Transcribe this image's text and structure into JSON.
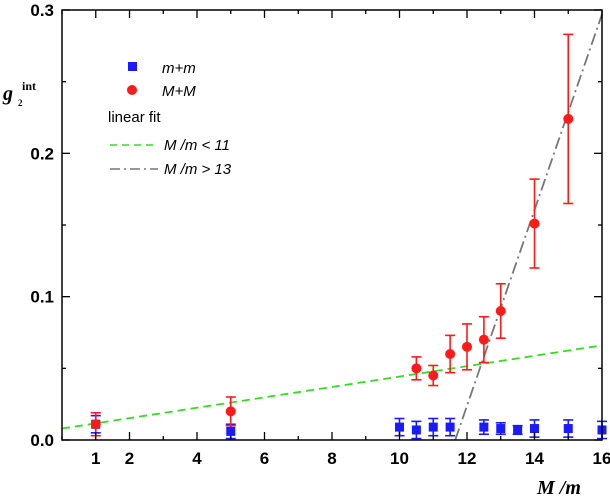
{
  "chart_data": {
    "type": "scatter",
    "ylabel": {
      "main": "g",
      "sup": "int",
      "sub": "2"
    },
    "xlabel": "M /m",
    "xlim": [
      0,
      16
    ],
    "ylim": [
      0,
      0.3
    ],
    "x_ticks": [
      1,
      2,
      4,
      6,
      8,
      10,
      12,
      14,
      16
    ],
    "y_ticks": [
      0.0,
      0.1,
      0.2,
      0.3
    ],
    "y_tick_labels": [
      "0.0",
      "0.1",
      "0.2",
      "0.3"
    ],
    "legend": {
      "placement": "top-left",
      "fit_title": "linear fit"
    },
    "series": [
      {
        "name": "m+m",
        "marker": "square",
        "color": "#1a1aff",
        "points": [
          {
            "x": 1,
            "y": 0.011,
            "err": 0.006
          },
          {
            "x": 5,
            "y": 0.006,
            "err": 0.005
          },
          {
            "x": 10,
            "y": 0.009,
            "err": 0.006
          },
          {
            "x": 10.5,
            "y": 0.007,
            "err": 0.006
          },
          {
            "x": 11,
            "y": 0.009,
            "err": 0.006
          },
          {
            "x": 11.5,
            "y": 0.009,
            "err": 0.006
          },
          {
            "x": 12.5,
            "y": 0.009,
            "err": 0.005
          },
          {
            "x": 13,
            "y": 0.008,
            "err": 0.004
          },
          {
            "x": 13.5,
            "y": 0.007,
            "err": 0.003
          },
          {
            "x": 14,
            "y": 0.008,
            "err": 0.006
          },
          {
            "x": 15,
            "y": 0.008,
            "err": 0.006
          },
          {
            "x": 16,
            "y": 0.007,
            "err": 0.006
          }
        ]
      },
      {
        "name": "M+M",
        "marker": "circle",
        "color": "#ff1a1a",
        "points": [
          {
            "x": 1,
            "y": 0.011,
            "err": 0.008
          },
          {
            "x": 5,
            "y": 0.02,
            "err": 0.01
          },
          {
            "x": 10.5,
            "y": 0.05,
            "err": 0.008
          },
          {
            "x": 11,
            "y": 0.045,
            "err": 0.007
          },
          {
            "x": 11.5,
            "y": 0.06,
            "err": 0.013
          },
          {
            "x": 12,
            "y": 0.065,
            "err": 0.016
          },
          {
            "x": 12.5,
            "y": 0.07,
            "err": 0.016
          },
          {
            "x": 13,
            "y": 0.09,
            "err": 0.019
          },
          {
            "x": 14,
            "y": 0.151,
            "err": 0.031
          },
          {
            "x": 15,
            "y": 0.224,
            "err": 0.059
          }
        ]
      }
    ],
    "fits": [
      {
        "name": "M /m < 11",
        "style": "dashed",
        "color": "#33dd22",
        "x": [
          0,
          16
        ],
        "y": [
          0.008,
          0.066
        ]
      },
      {
        "name": "M /m > 13",
        "style": "dash-dot",
        "color": "#777777",
        "x": [
          11.65,
          16
        ],
        "y": [
          0,
          0.297
        ]
      }
    ]
  }
}
